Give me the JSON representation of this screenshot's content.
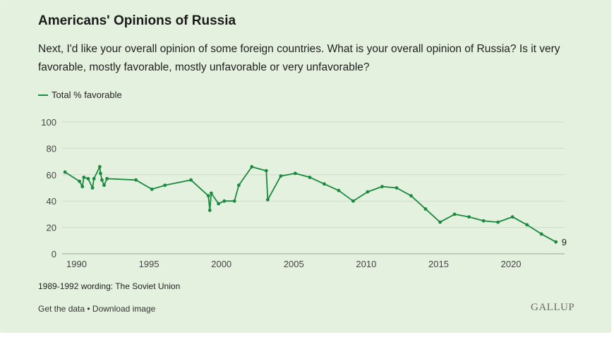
{
  "header": {
    "title": "Americans' Opinions of Russia",
    "subtitle": "Next, I'd like your overall opinion of some foreign countries. What is your overall opinion of Russia? Is it very favorable, mostly favorable, mostly unfavorable or very unfavorable?"
  },
  "footer": {
    "note": "1989-1992 wording: The Soviet Union",
    "get_data": "Get the data",
    "separator": " • ",
    "download": "Download image",
    "logo": "GALLUP"
  },
  "colors": {
    "series": "#1a8a3e",
    "background": "#e5f1df",
    "grid": "#cfd9c9"
  },
  "chart_data": {
    "type": "line",
    "title": "Americans' Opinions of Russia",
    "xlabel": "",
    "ylabel": "",
    "xlim": [
      1989,
      2023.7
    ],
    "ylim": [
      0,
      100
    ],
    "xticks": [
      1990,
      1995,
      2000,
      2005,
      2010,
      2015,
      2020
    ],
    "yticks": [
      0,
      20,
      40,
      60,
      80,
      100
    ],
    "grid": true,
    "legend_position": "top-left",
    "end_label": "9",
    "series": [
      {
        "name": "Total % favorable",
        "x": [
          1989.2,
          1990.2,
          1990.4,
          1990.5,
          1990.8,
          1991.1,
          1991.2,
          1991.6,
          1991.65,
          1991.75,
          1991.9,
          1992.1,
          1994.1,
          1995.2,
          1996.1,
          1997.9,
          1999.1,
          1999.2,
          1999.3,
          1999.8,
          2000.2,
          2000.9,
          2001.2,
          2002.1,
          2003.1,
          2003.2,
          2004.1,
          2005.1,
          2006.1,
          2007.1,
          2008.1,
          2009.1,
          2010.1,
          2011.1,
          2012.1,
          2013.1,
          2014.1,
          2015.1,
          2016.1,
          2017.1,
          2018.1,
          2019.1,
          2020.1,
          2021.1,
          2022.1,
          2023.1
        ],
        "values": [
          62,
          55,
          51,
          58,
          57,
          50,
          57,
          66,
          61,
          56,
          52,
          57,
          56,
          49,
          52,
          56,
          44,
          33,
          46,
          38,
          40,
          40,
          52,
          66,
          63,
          41,
          59,
          61,
          58,
          53,
          48,
          40,
          47,
          51,
          50,
          44,
          34,
          24,
          30,
          28,
          25,
          24,
          28,
          22,
          15,
          9
        ]
      }
    ]
  }
}
